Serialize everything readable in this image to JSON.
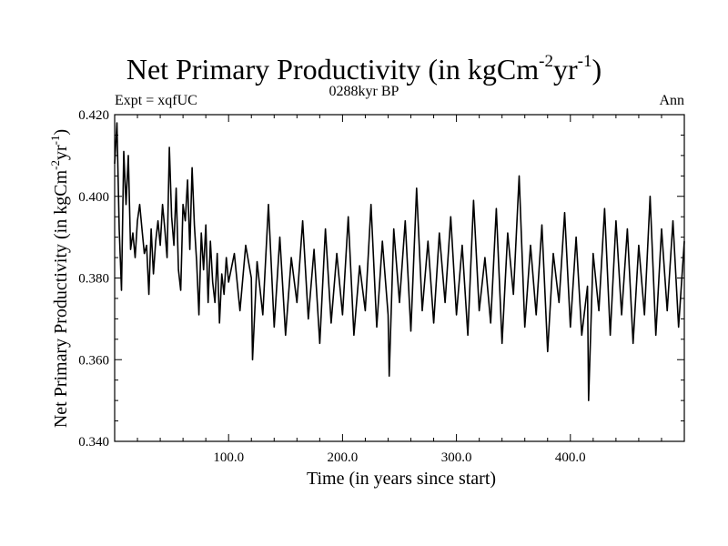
{
  "header": {
    "title_main": "Net Primary Productivity (in kgCm",
    "title_exp1": "-2",
    "title_mid": "yr",
    "title_exp2": "-1",
    "title_end": ")",
    "expt": "Expt = xqfUC",
    "period": "0288kyr BP",
    "season": "Ann"
  },
  "chart_data": {
    "type": "line",
    "title": "Net Primary Productivity (in kgCm-2yr-1)",
    "xlabel": "Time (in years since start)",
    "ylabel": "Net Primary Productivity (in kgCm-2yr-1)",
    "ylabel_parts": {
      "main": "Net Primary Productivity (in kgCm",
      "exp1": "-2",
      "mid": "yr",
      "exp2": "-1",
      "end": ")"
    },
    "xlim": [
      0,
      500
    ],
    "ylim": [
      0.34,
      0.42
    ],
    "x_ticks": [
      100,
      200,
      300,
      400
    ],
    "x_tick_labels": [
      "100.0",
      "200.0",
      "300.0",
      "400.0"
    ],
    "y_ticks": [
      0.34,
      0.36,
      0.38,
      0.4,
      0.42
    ],
    "y_tick_labels": [
      "0.340",
      "0.360",
      "0.380",
      "0.400",
      "0.420"
    ],
    "grid": false,
    "line_color": "#000000",
    "series": [
      {
        "x": [
          0,
          2,
          4,
          6,
          8,
          10,
          12,
          14,
          16,
          18,
          20,
          22,
          24,
          26,
          28,
          30,
          32,
          34,
          36,
          38,
          40,
          42,
          44,
          46,
          48,
          50,
          52,
          54,
          56,
          58,
          60,
          62,
          64,
          66,
          68,
          70,
          72,
          74,
          76,
          78,
          80,
          82,
          84,
          86,
          88,
          90,
          92,
          94,
          96,
          98,
          100,
          105,
          110,
          115,
          120,
          121,
          125,
          130,
          135,
          140,
          145,
          150,
          155,
          160,
          165,
          170,
          175,
          180,
          185,
          190,
          195,
          200,
          205,
          210,
          215,
          220,
          225,
          230,
          235,
          240,
          241,
          245,
          250,
          255,
          260,
          265,
          270,
          275,
          280,
          285,
          290,
          295,
          300,
          305,
          310,
          315,
          320,
          325,
          330,
          335,
          340,
          345,
          350,
          355,
          360,
          365,
          370,
          375,
          380,
          385,
          390,
          395,
          400,
          405,
          410,
          415,
          416,
          420,
          425,
          430,
          435,
          440,
          445,
          450,
          455,
          460,
          465,
          470,
          475,
          480,
          485,
          490,
          495,
          500
        ],
        "y": [
          0.408,
          0.418,
          0.392,
          0.377,
          0.411,
          0.398,
          0.41,
          0.387,
          0.391,
          0.385,
          0.394,
          0.398,
          0.392,
          0.386,
          0.388,
          0.376,
          0.392,
          0.381,
          0.389,
          0.394,
          0.388,
          0.398,
          0.392,
          0.385,
          0.412,
          0.395,
          0.388,
          0.402,
          0.382,
          0.377,
          0.398,
          0.394,
          0.404,
          0.387,
          0.407,
          0.393,
          0.384,
          0.371,
          0.391,
          0.382,
          0.393,
          0.374,
          0.389,
          0.379,
          0.374,
          0.386,
          0.369,
          0.381,
          0.376,
          0.385,
          0.379,
          0.386,
          0.372,
          0.388,
          0.38,
          0.36,
          0.384,
          0.371,
          0.398,
          0.368,
          0.39,
          0.366,
          0.385,
          0.374,
          0.394,
          0.37,
          0.387,
          0.364,
          0.392,
          0.369,
          0.386,
          0.371,
          0.395,
          0.366,
          0.383,
          0.372,
          0.398,
          0.368,
          0.389,
          0.371,
          0.356,
          0.392,
          0.374,
          0.394,
          0.367,
          0.402,
          0.372,
          0.389,
          0.369,
          0.391,
          0.374,
          0.395,
          0.371,
          0.388,
          0.366,
          0.399,
          0.372,
          0.385,
          0.369,
          0.397,
          0.364,
          0.391,
          0.376,
          0.405,
          0.368,
          0.388,
          0.371,
          0.393,
          0.362,
          0.386,
          0.374,
          0.396,
          0.368,
          0.39,
          0.366,
          0.378,
          0.35,
          0.386,
          0.372,
          0.397,
          0.366,
          0.394,
          0.371,
          0.392,
          0.364,
          0.388,
          0.371,
          0.4,
          0.366,
          0.392,
          0.372,
          0.394,
          0.368,
          0.389
        ]
      }
    ]
  }
}
